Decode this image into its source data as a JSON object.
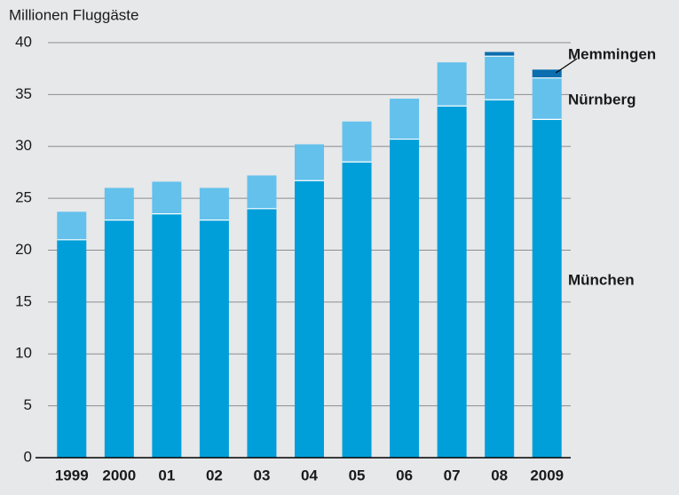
{
  "chart_data": {
    "type": "stacked-bar",
    "title": "Millionen Fluggäste",
    "categories": [
      "1999",
      "2000",
      "01",
      "02",
      "03",
      "04",
      "05",
      "06",
      "07",
      "08",
      "2009"
    ],
    "series": [
      {
        "name": "München",
        "color": "#009fda",
        "values": [
          21.0,
          22.9,
          23.5,
          22.9,
          24.0,
          26.7,
          28.5,
          30.7,
          33.9,
          34.5,
          32.6
        ]
      },
      {
        "name": "Nürnberg",
        "color": "#63c1ec",
        "values": [
          2.7,
          3.1,
          3.1,
          3.1,
          3.2,
          3.5,
          3.9,
          3.9,
          4.2,
          4.2,
          4.0
        ]
      },
      {
        "name": "Memmingen",
        "color": "#0a6eaf",
        "values": [
          null,
          null,
          null,
          null,
          null,
          null,
          null,
          null,
          null,
          0.4,
          0.8
        ]
      }
    ],
    "ylim": [
      0,
      40
    ],
    "yticks": [
      0,
      5,
      10,
      15,
      20,
      25,
      30,
      35,
      40
    ],
    "grid": true
  }
}
